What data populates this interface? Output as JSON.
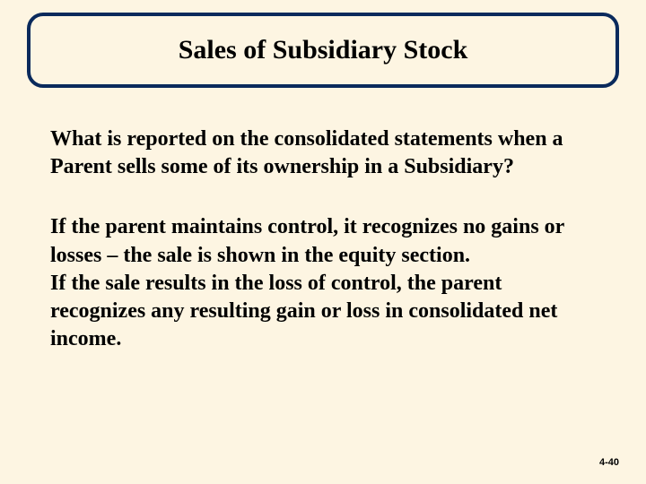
{
  "slide": {
    "title": "Sales of Subsidiary Stock",
    "question": "What is reported on the consolidated statements when a Parent sells some of its ownership in a Subsidiary?",
    "answer_part1": "If the parent maintains control, it recognizes no gains or losses – the sale is shown in the equity section.",
    "answer_part2": "If the sale results in the loss of control, the parent recognizes any resulting gain or loss in consolidated net income.",
    "slide_number": "4-40"
  },
  "style": {
    "background_color": "#fdf5e2",
    "border_color": "#0a2a5c",
    "title_fontsize": 30,
    "body_fontsize": 24,
    "text_color": "#000000",
    "border_width": 4,
    "border_radius": 18
  }
}
